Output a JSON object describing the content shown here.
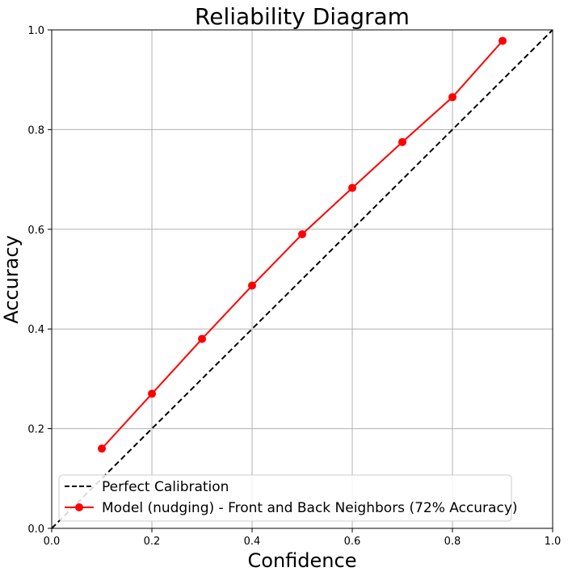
{
  "chart_data": {
    "type": "line",
    "title": "Reliability Diagram",
    "xlabel": "Confidence",
    "ylabel": "Accuracy",
    "xlim": [
      0.0,
      1.0
    ],
    "ylim": [
      0.0,
      1.0
    ],
    "xticks": [
      "0.0",
      "0.2",
      "0.4",
      "0.6",
      "0.8",
      "1.0"
    ],
    "yticks": [
      "0.0",
      "0.2",
      "0.4",
      "0.6",
      "0.8",
      "1.0"
    ],
    "grid": true,
    "legend_position": "lower-center",
    "series": [
      {
        "name": "Perfect Calibration",
        "style": "dashed",
        "color": "#000000",
        "x": [
          0.0,
          1.0
        ],
        "y": [
          0.0,
          1.0
        ]
      },
      {
        "name": "Model (nudging) - Front and Back Neighbors (72% Accuracy)",
        "style": "solid-markers",
        "color": "#ff0000",
        "x": [
          0.1,
          0.2,
          0.3,
          0.4,
          0.5,
          0.6,
          0.7,
          0.8,
          0.9
        ],
        "y": [
          0.16,
          0.27,
          0.38,
          0.487,
          0.59,
          0.683,
          0.775,
          0.865,
          0.978
        ]
      }
    ]
  }
}
